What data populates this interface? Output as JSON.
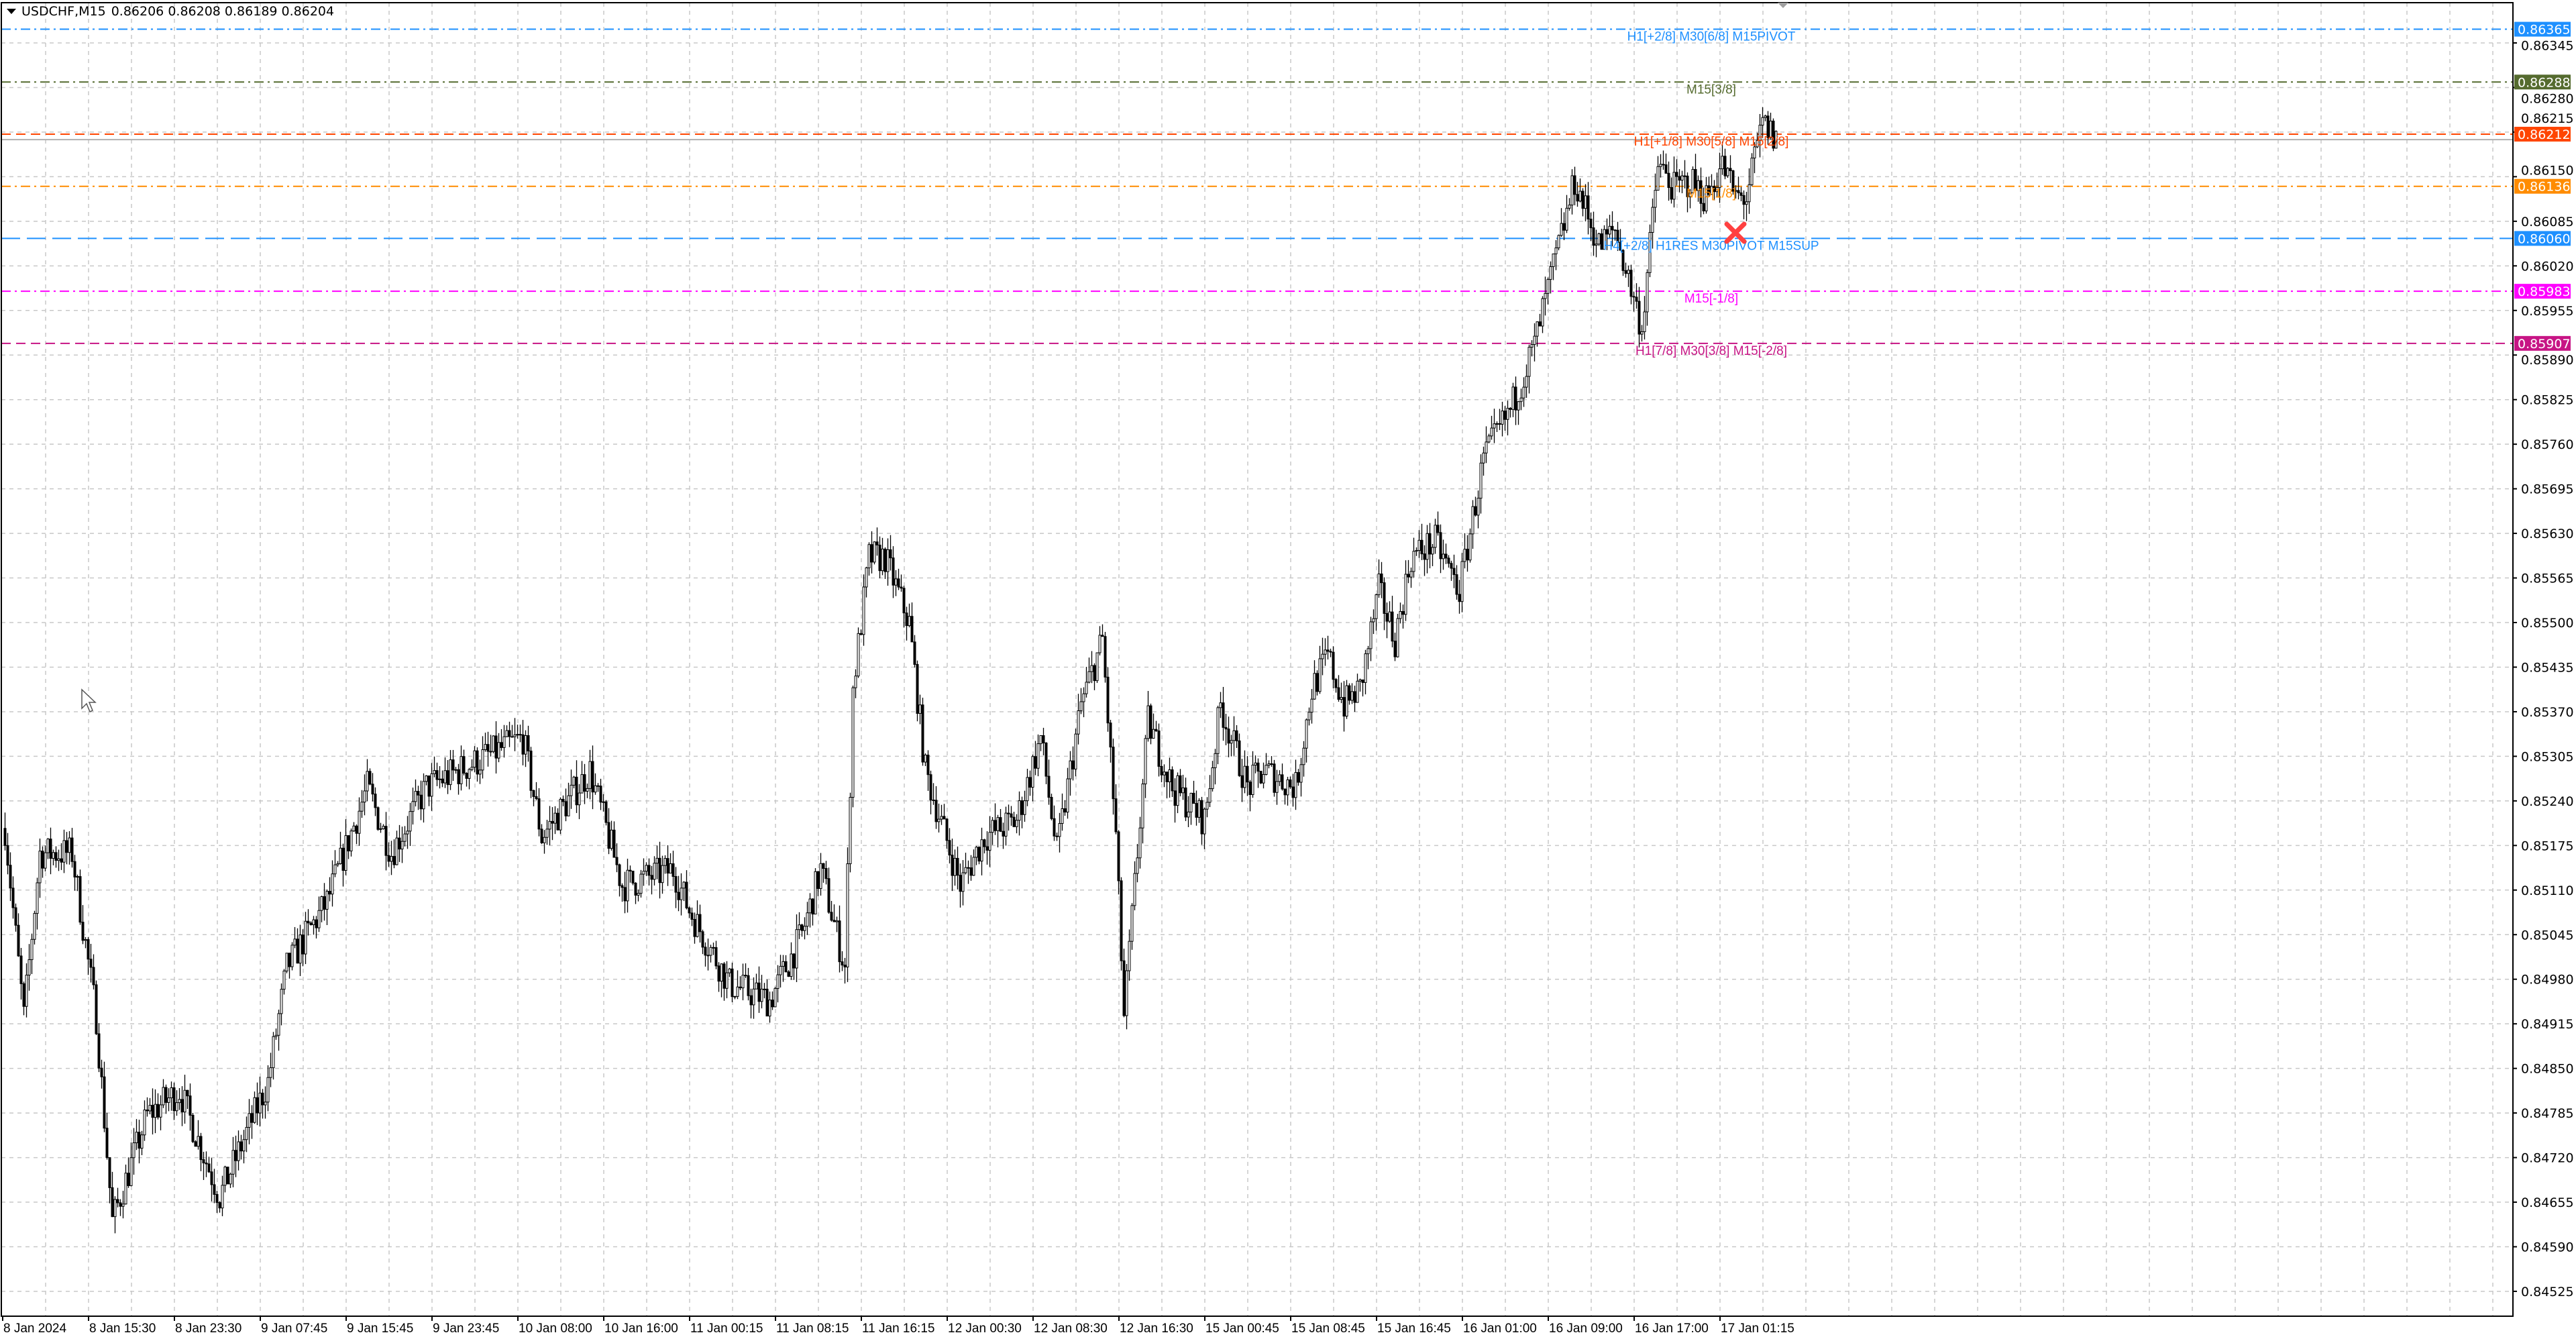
{
  "header": {
    "symbol": "USDCHF,M15",
    "ohlc": "0.86206 0.86208 0.86189 0.86204"
  },
  "current_price": 0.86204,
  "price_axis": {
    "ticks": [
      "0.86345",
      "0.86280",
      "0.86215",
      "0.86150",
      "0.86085",
      "0.86020",
      "0.85955",
      "0.85890",
      "0.85825",
      "0.85760",
      "0.85695",
      "0.85630",
      "0.85565",
      "0.85500",
      "0.85435",
      "0.85370",
      "0.85305",
      "0.85240",
      "0.85175",
      "0.85110",
      "0.85045",
      "0.84980",
      "0.84915",
      "0.84850",
      "0.84785",
      "0.84720",
      "0.84655",
      "0.84590",
      "0.84525"
    ]
  },
  "time_axis": {
    "labels": [
      "8 Jan 2024",
      "8 Jan 15:30",
      "8 Jan 23:30",
      "9 Jan 07:45",
      "9 Jan 15:45",
      "9 Jan 23:45",
      "10 Jan 08:00",
      "10 Jan 16:00",
      "11 Jan 00:15",
      "11 Jan 08:15",
      "11 Jan 16:15",
      "12 Jan 00:30",
      "12 Jan 08:30",
      "12 Jan 16:30",
      "15 Jan 00:45",
      "15 Jan 08:45",
      "15 Jan 16:45",
      "16 Jan 01:00",
      "16 Jan 09:00",
      "16 Jan 17:00",
      "17 Jan 01:15"
    ]
  },
  "levels": [
    {
      "price": "0.86365",
      "value": 0.86365,
      "color": "#1E90FF",
      "label": "H1[+2/8] M30[6/8] M15PIVOT",
      "dash": "14,6,3,6"
    },
    {
      "price": "0.86288",
      "value": 0.86288,
      "color": "#556B2F",
      "label": "M15[3/8]",
      "dash": "14,6,3,6"
    },
    {
      "price": "0.86212",
      "value": 0.86212,
      "color": "#FF4500",
      "label": "H1[+1/8] M30[5/8] M15[2/8]",
      "dash": "14,8"
    },
    {
      "price": "0.86136",
      "value": 0.86136,
      "color": "#FF8C00",
      "label": "M15[1/8]",
      "dash": "14,6,3,6"
    },
    {
      "price": "0.86060",
      "value": 0.8606,
      "color": "#1E90FF",
      "label": "H4[+2/8] H1RES M30PIVOT M15SUP",
      "dash": "28,10"
    },
    {
      "price": "0.85983",
      "value": 0.85983,
      "color": "#FF00FF",
      "label": "M15[-1/8]",
      "dash": "14,6,3,6"
    },
    {
      "price": "0.85907",
      "value": 0.85907,
      "color": "#C71585",
      "label": "H1[7/8] M30[3/8] M15[-2/8]",
      "dash": "14,8"
    }
  ],
  "price_path": [
    [
      0,
      0.852
    ],
    [
      7,
      0.84925
    ],
    [
      13,
      0.85164
    ],
    [
      25,
      0.85164
    ],
    [
      34,
      0.84925
    ],
    [
      40,
      0.84627
    ],
    [
      53,
      0.84782
    ],
    [
      65,
      0.84818
    ],
    [
      80,
      0.84663
    ],
    [
      98,
      0.8483
    ],
    [
      105,
      0.84997
    ],
    [
      120,
      0.85093
    ],
    [
      135,
      0.8526
    ],
    [
      144,
      0.85164
    ],
    [
      157,
      0.8526
    ],
    [
      193,
      0.85332
    ],
    [
      200,
      0.85188
    ],
    [
      218,
      0.85284
    ],
    [
      230,
      0.85117
    ],
    [
      249,
      0.8514
    ],
    [
      255,
      0.85081
    ],
    [
      270,
      0.84973
    ],
    [
      285,
      0.84949
    ],
    [
      297,
      0.85045
    ],
    [
      304,
      0.8514
    ],
    [
      313,
      0.84997
    ],
    [
      316,
      0.85403
    ],
    [
      322,
      0.85595
    ],
    [
      328,
      0.85595
    ],
    [
      337,
      0.85499
    ],
    [
      343,
      0.85284
    ],
    [
      356,
      0.85117
    ],
    [
      365,
      0.85188
    ],
    [
      377,
      0.85212
    ],
    [
      386,
      0.85332
    ],
    [
      392,
      0.85164
    ],
    [
      401,
      0.8538
    ],
    [
      409,
      0.85475
    ],
    [
      414,
      0.85188
    ],
    [
      417,
      0.84925
    ],
    [
      423,
      0.85212
    ],
    [
      426,
      0.85356
    ],
    [
      435,
      0.8526
    ],
    [
      447,
      0.85212
    ],
    [
      453,
      0.8538
    ],
    [
      463,
      0.8526
    ],
    [
      469,
      0.85284
    ],
    [
      481,
      0.8526
    ],
    [
      487,
      0.85403
    ],
    [
      493,
      0.85451
    ],
    [
      499,
      0.8538
    ],
    [
      505,
      0.85403
    ],
    [
      512,
      0.85547
    ],
    [
      518,
      0.85475
    ],
    [
      524,
      0.85595
    ],
    [
      533,
      0.85618
    ],
    [
      542,
      0.85547
    ],
    [
      551,
      0.85738
    ],
    [
      561,
      0.8581
    ],
    [
      570,
      0.85905
    ],
    [
      576,
      0.86001
    ],
    [
      585,
      0.86144
    ],
    [
      594,
      0.86049
    ],
    [
      600,
      0.86073
    ],
    [
      610,
      0.85929
    ],
    [
      616,
      0.86168
    ],
    [
      622,
      0.86132
    ],
    [
      628,
      0.86144
    ],
    [
      634,
      0.8612
    ],
    [
      640,
      0.86168
    ],
    [
      645,
      0.8612
    ],
    [
      649,
      0.8612
    ],
    [
      655,
      0.86228
    ],
    [
      660,
      0.86204
    ]
  ],
  "markers": {
    "close_x_icon": "#FF4040"
  }
}
